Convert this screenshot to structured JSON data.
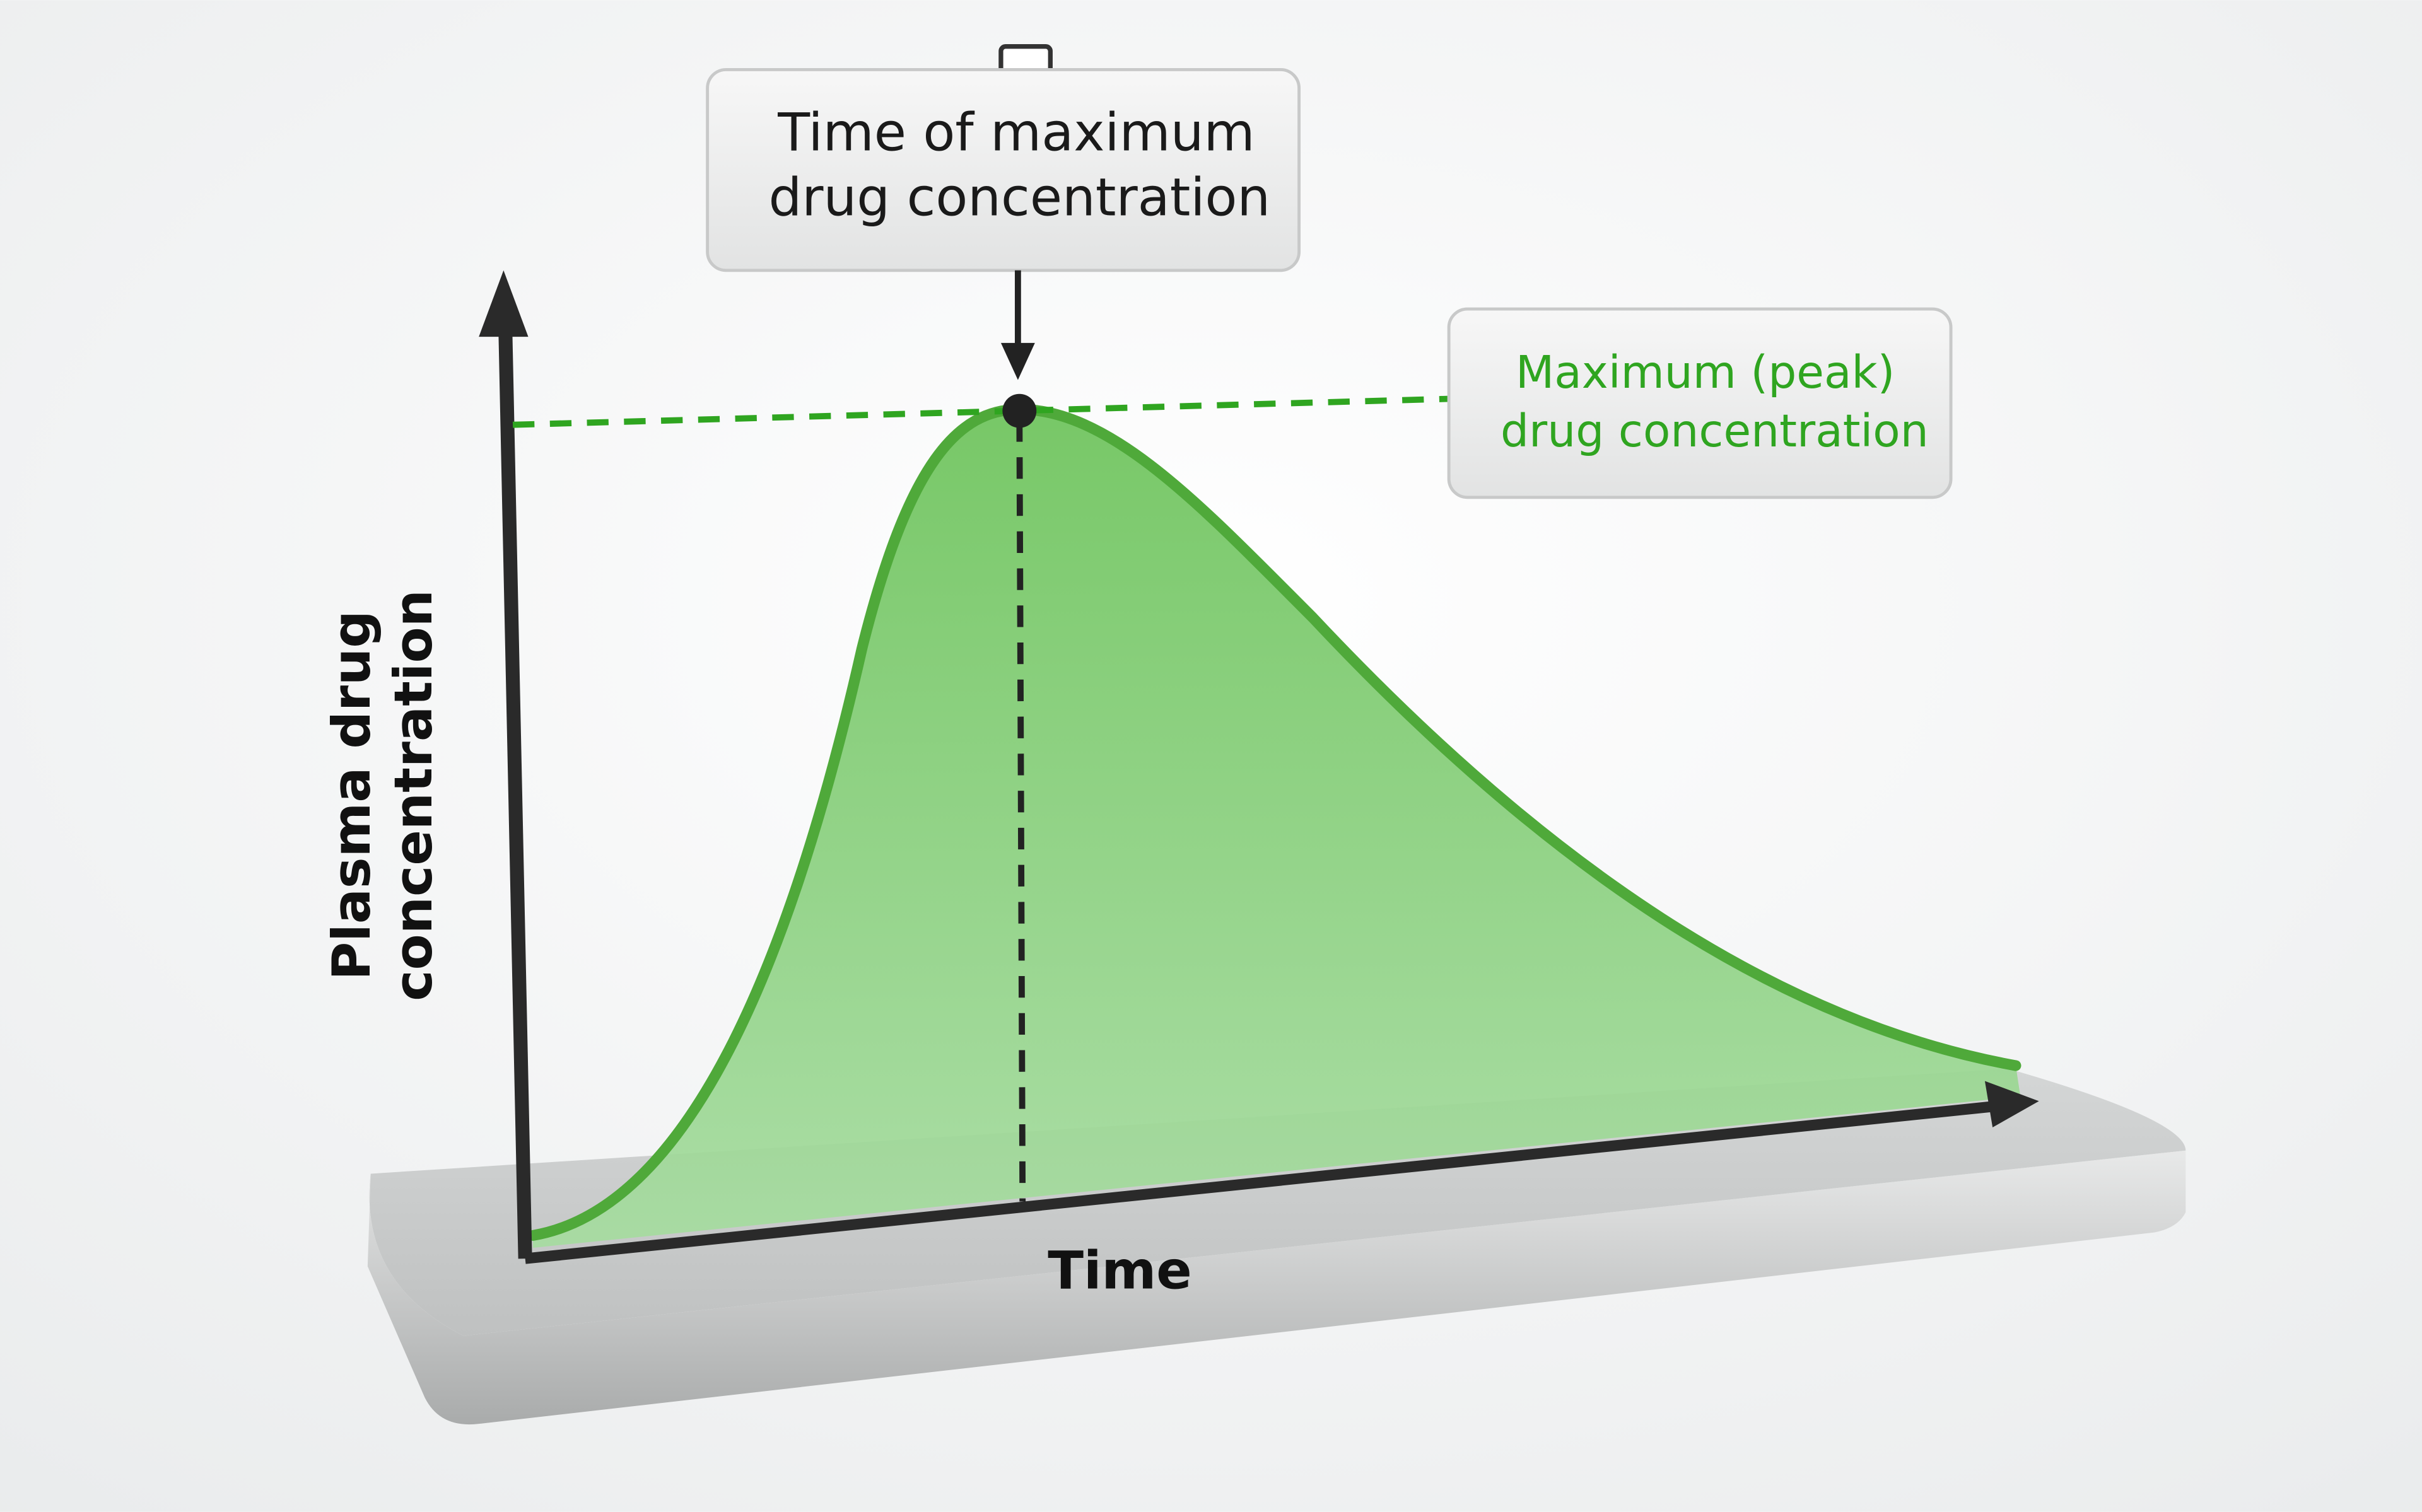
{
  "y_axis_label": [
    "Plasma drug",
    "concentration"
  ],
  "x_axis_label": "Time",
  "annotations": {
    "time_of_max": [
      "Time of maximum",
      "drug concentration"
    ],
    "max_concentration": [
      "Maximum (peak)",
      "drug concentration"
    ]
  }
}
